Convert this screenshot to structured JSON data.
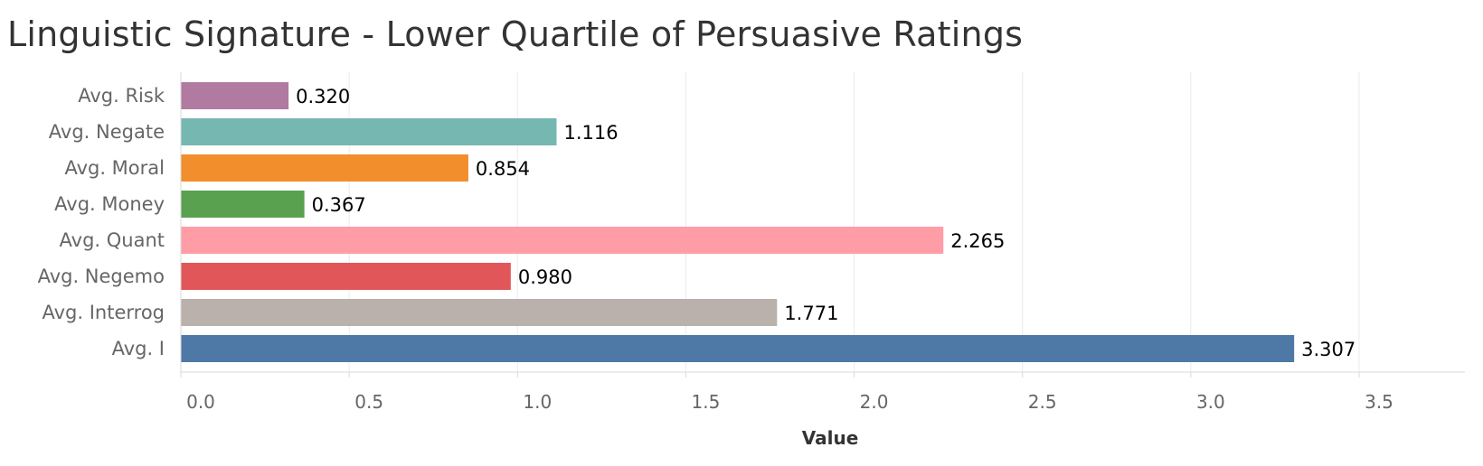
{
  "chart_data": {
    "type": "bar",
    "orientation": "horizontal",
    "title": "Linguistic Signature - Lower Quartile of Persuasive Ratings",
    "xlabel": "Value",
    "ylabel": "",
    "xlim": [
      0,
      3.6
    ],
    "ticks": [
      "0.0",
      "0.5",
      "1.0",
      "1.5",
      "2.0",
      "2.5",
      "3.0",
      "3.5"
    ],
    "tick_values": [
      0,
      0.5,
      1.0,
      1.5,
      2.0,
      2.5,
      3.0,
      3.5
    ],
    "grid": true,
    "legend": "none",
    "categories": [
      "Avg. Risk",
      "Avg. Negate",
      "Avg. Moral",
      "Avg. Money",
      "Avg. Quant",
      "Avg. Negemo",
      "Avg. Interrog",
      "Avg. I"
    ],
    "values": [
      0.32,
      1.116,
      0.854,
      0.367,
      2.265,
      0.98,
      1.771,
      3.307
    ],
    "value_labels": [
      "0.320",
      "1.116",
      "0.854",
      "0.367",
      "2.265",
      "0.980",
      "1.771",
      "3.307"
    ],
    "colors": [
      "#b07aa1",
      "#76b7b2",
      "#f28e2b",
      "#59a14f",
      "#ff9da7",
      "#e15759",
      "#bab0ac",
      "#4e79a7"
    ]
  }
}
